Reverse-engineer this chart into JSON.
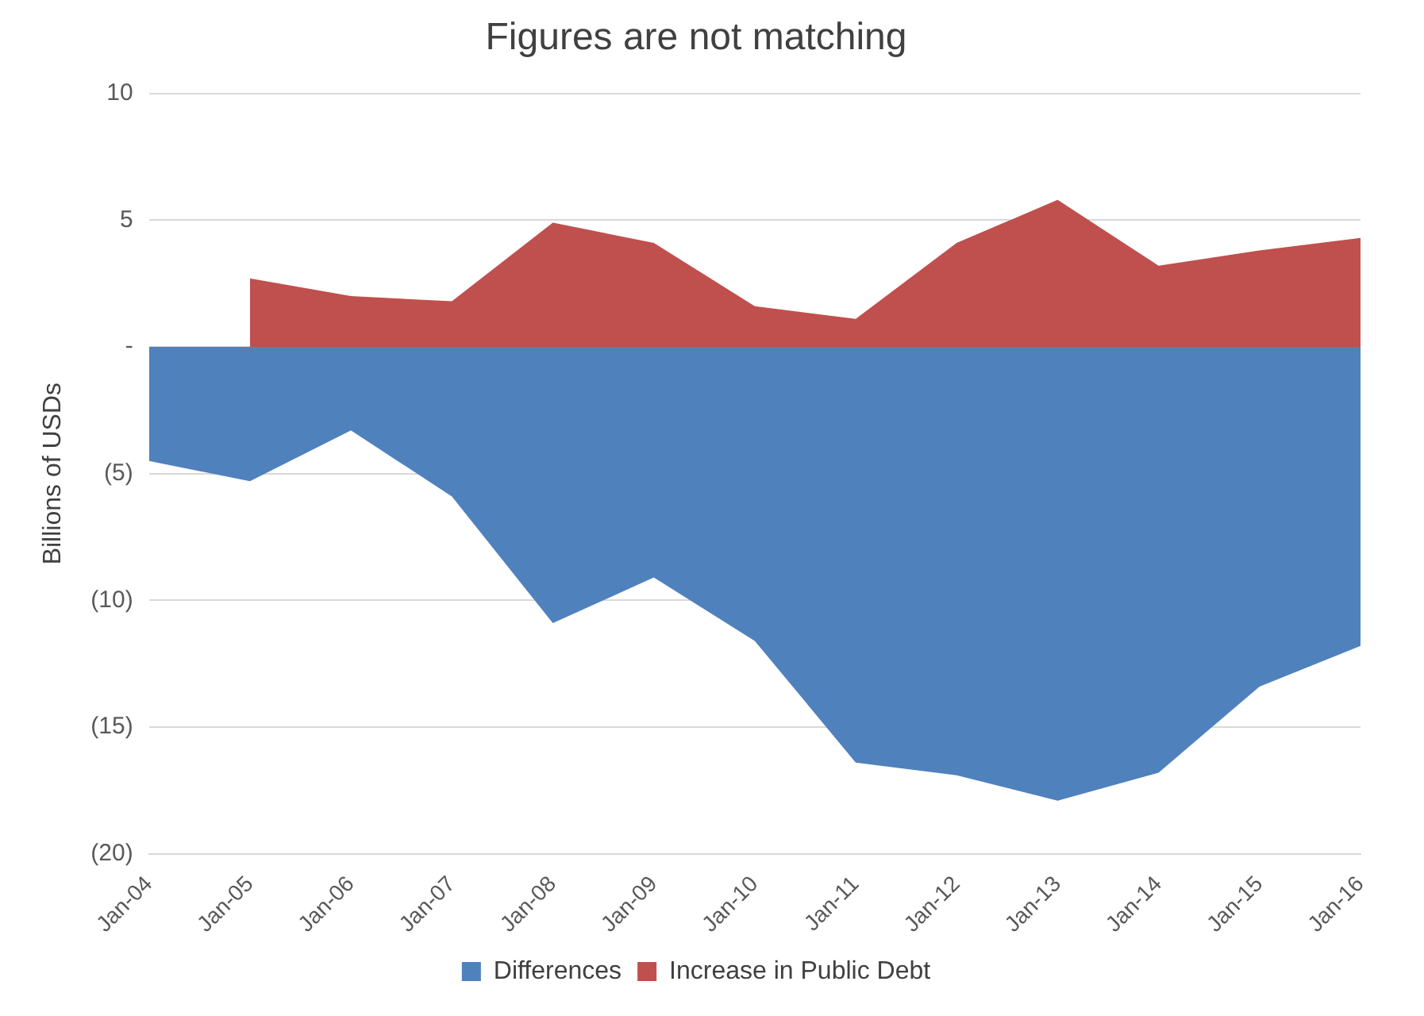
{
  "chart_data": {
    "type": "area",
    "title": "Figures are not matching",
    "ylabel": "Billions of USDs",
    "categories": [
      "Jan-04",
      "Jan-05",
      "Jan-06",
      "Jan-07",
      "Jan-08",
      "Jan-09",
      "Jan-10",
      "Jan-11",
      "Jan-12",
      "Jan-13",
      "Jan-14",
      "Jan-15",
      "Jan-16"
    ],
    "series": [
      {
        "name": "Differences",
        "color": "#4f81bd",
        "values": [
          -4.5,
          -5.3,
          -3.3,
          -5.9,
          -10.9,
          -9.1,
          -11.6,
          -16.4,
          -16.9,
          -17.9,
          -16.8,
          -13.4,
          -11.8
        ]
      },
      {
        "name": "Increase in Public Debt",
        "color": "#c0504d",
        "values": [
          null,
          2.7,
          2.0,
          1.8,
          4.9,
          4.1,
          1.6,
          1.1,
          4.1,
          5.8,
          3.2,
          3.8,
          4.3
        ]
      }
    ],
    "ylim": [
      -20,
      10
    ],
    "yticks": [
      {
        "value": -20,
        "label": "(20)"
      },
      {
        "value": -15,
        "label": "(15)"
      },
      {
        "value": -10,
        "label": "(10)"
      },
      {
        "value": -5,
        "label": "(5)"
      },
      {
        "value": 0,
        "label": "-"
      },
      5,
      10
    ],
    "grid": "y",
    "legend": "bottom"
  }
}
